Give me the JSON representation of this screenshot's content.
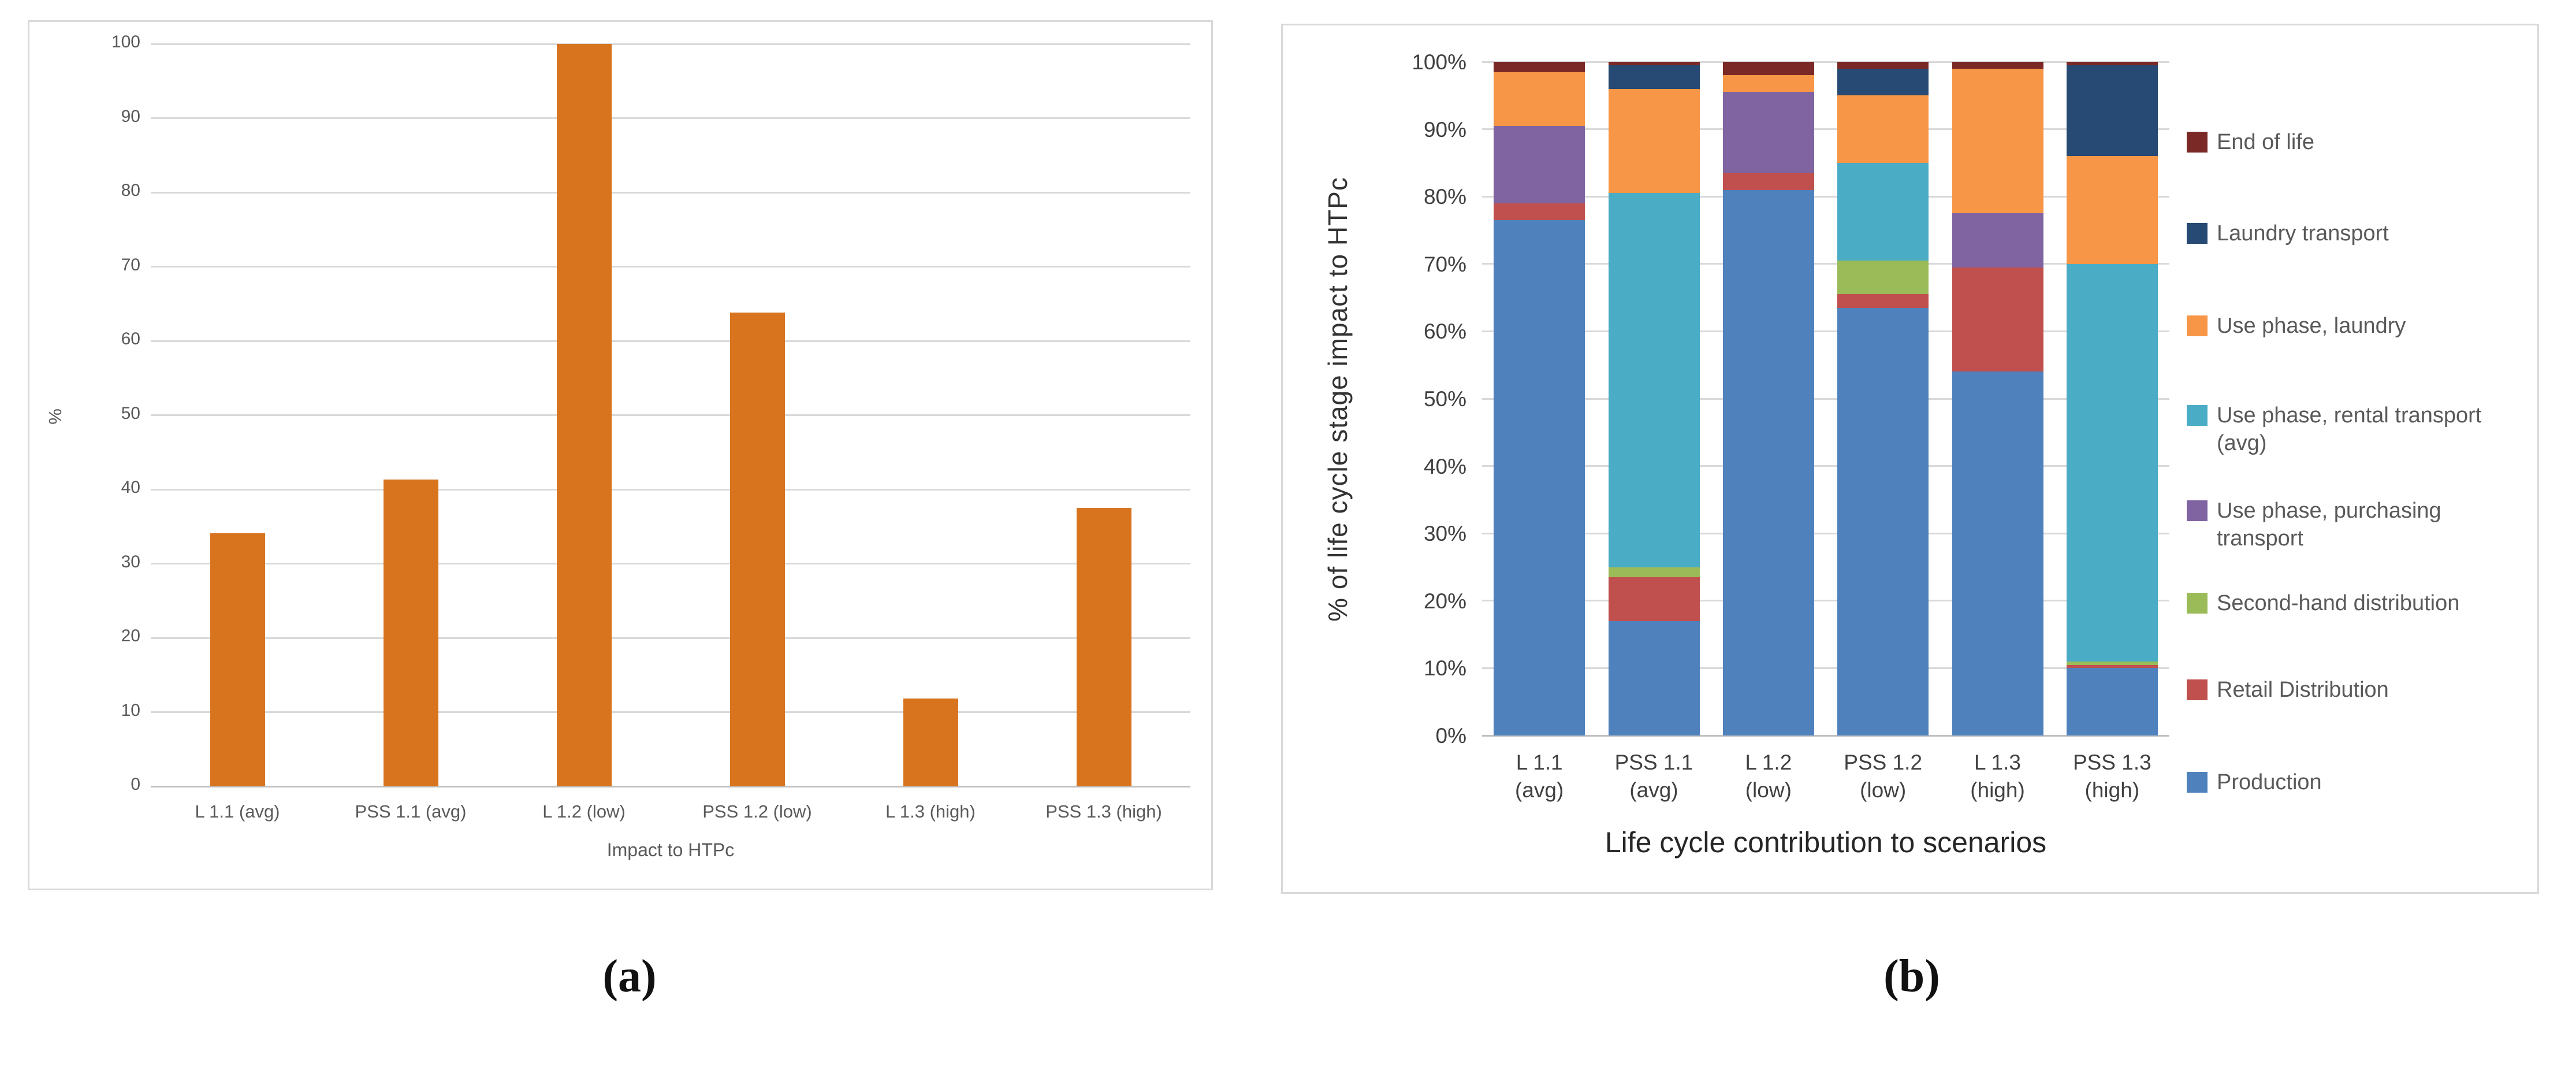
{
  "figure": {
    "caption_a": "(a)",
    "caption_b": "(b)"
  },
  "colors": {
    "gridline": "#D9D9D9",
    "axis_line": "#BFBFBF",
    "chart_a_bar": "#D8741E",
    "production": "#4F81BD",
    "retail_distribution": "#C0504D",
    "second_hand_distribution": "#9BBB59",
    "use_phase_purchasing_transport": "#8064A2",
    "use_phase_rental_transport": "#4BACC6",
    "use_phase_laundry": "#F79646",
    "laundry_transport": "#264A73",
    "end_of_life": "#7B2927"
  },
  "chart_data": [
    {
      "id": "a",
      "type": "bar",
      "title": "",
      "xlabel": "Impact to HTPc",
      "ylabel": "%",
      "ylim": [
        0,
        100
      ],
      "ytick_step": 10,
      "ytick_suffix": "",
      "grid": true,
      "legend_position": "none",
      "categories": [
        "L 1.1 (avg)",
        "PSS 1.1 (avg)",
        "L 1.2 (low)",
        "PSS 1.2 (low)",
        "L 1.3 (high)",
        "PSS 1.3 (high)"
      ],
      "values": [
        34.1,
        41.3,
        100,
        63.8,
        11.8,
        37.5
      ],
      "bar_color": "#D8741E"
    },
    {
      "id": "b",
      "type": "stacked-bar",
      "title": "",
      "xlabel": "Life cycle contribution to scenarios",
      "ylabel": "% of life cycle stage impact to HTPc",
      "ylim": [
        0,
        100
      ],
      "ytick_step": 10,
      "ytick_suffix": "%",
      "grid": true,
      "legend_position": "right",
      "categories": [
        "L 1.1\n(avg)",
        "PSS 1.1\n(avg)",
        "L 1.2\n(low)",
        "PSS 1.2\n(low)",
        "L 1.3\n(high)",
        "PSS 1.3\n(high)"
      ],
      "series": [
        {
          "name": "Production",
          "color": "#4F81BD",
          "values": [
            76.5,
            17,
            81,
            63.5,
            54,
            10
          ]
        },
        {
          "name": "Retail Distribution",
          "color": "#C0504D",
          "values": [
            2.5,
            6.5,
            2.5,
            2,
            15.5,
            0.5
          ]
        },
        {
          "name": "Second-hand distribution",
          "color": "#9BBB59",
          "values": [
            0,
            1.5,
            0,
            5,
            0,
            0.5
          ]
        },
        {
          "name": "Use phase, purchasing transport",
          "color": "#8064A2",
          "values": [
            11.5,
            0,
            12,
            0,
            8,
            0
          ]
        },
        {
          "name": "Use phase, rental transport (avg)",
          "color": "#4BACC6",
          "values": [
            0,
            55.5,
            0,
            14.5,
            0,
            59
          ]
        },
        {
          "name": "Use phase, laundry",
          "color": "#F79646",
          "values": [
            8,
            15.5,
            2.5,
            10,
            21.5,
            16
          ]
        },
        {
          "name": "Laundry transport",
          "color": "#264A73",
          "values": [
            0,
            3.5,
            0,
            4,
            0,
            13.5
          ]
        },
        {
          "name": "End of life",
          "color": "#7B2927",
          "values": [
            1.5,
            0.5,
            2,
            1,
            1,
            0.5
          ]
        }
      ],
      "legend": [
        {
          "label": "End of life",
          "color": "#7B2927"
        },
        {
          "label": "Laundry transport",
          "color": "#264A73"
        },
        {
          "label": "Use phase, laundry",
          "color": "#F79646"
        },
        {
          "label": "Use phase, rental transport\n(avg)",
          "color": "#4BACC6"
        },
        {
          "label": "Use phase, purchasing\ntransport",
          "color": "#8064A2"
        },
        {
          "label": "Second-hand distribution",
          "color": "#9BBB59"
        },
        {
          "label": "Retail Distribution",
          "color": "#C0504D"
        },
        {
          "label": "Production",
          "color": "#4F81BD"
        }
      ]
    }
  ]
}
